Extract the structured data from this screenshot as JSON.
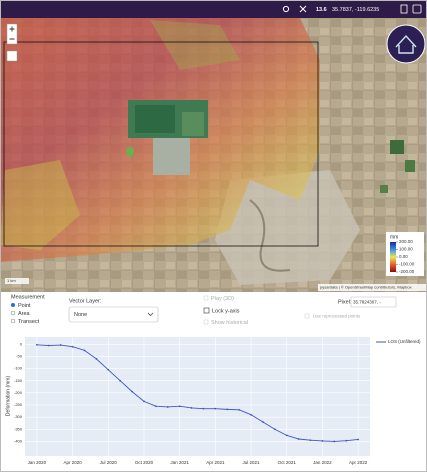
{
  "top_bar": {
    "zoom": "13.6",
    "coords": "35.7837, -119.6235"
  },
  "map": {
    "scale": "1 km",
    "attribution": "pysardata | © OpenStreetMap contributors, Mapbox",
    "colorbar": {
      "unit": "mm",
      "ticks": [
        {
          "value": 200,
          "label": "200.00"
        },
        {
          "value": 100,
          "label": "100.00"
        },
        {
          "value": 0,
          "label": "0.00"
        },
        {
          "value": -100,
          "label": "-100.00"
        },
        {
          "value": -200,
          "label": "-200.00"
        }
      ]
    }
  },
  "controls": {
    "measurement": "Measurement",
    "options": [
      "Point",
      "Area",
      "Transect"
    ],
    "vector_layer": "Vector Layer:",
    "vector_value": "None",
    "play": "Play (3D)",
    "lock": "Lock y-axis",
    "historical": "Show historical",
    "pixel": "Pixel:",
    "pixel_value": "35.7824307, -",
    "reprocessed": "Use reprocessed points"
  },
  "chart_data": {
    "type": "line",
    "y_label": "Deformation (mm)",
    "x": [
      "2020-01",
      "2020-02",
      "2020-03",
      "2020-04",
      "2020-05",
      "2020-06",
      "2020-07",
      "2020-08",
      "2020-09",
      "2020-10",
      "2020-11",
      "2020-12",
      "2021-01",
      "2021-02",
      "2021-03",
      "2021-04",
      "2021-05",
      "2021-06",
      "2021-07",
      "2021-08",
      "2021-09",
      "2021-10",
      "2021-11",
      "2021-12",
      "2022-01",
      "2022-02",
      "2022-03",
      "2022-04"
    ],
    "series": [
      {
        "name": "LOS (Unfiltered)",
        "color": "#4154c9",
        "values": [
          -2,
          -5,
          -3,
          -10,
          -25,
          -60,
          -105,
          -150,
          -195,
          -235,
          -255,
          -258,
          -255,
          -262,
          -265,
          -265,
          -268,
          -270,
          -290,
          -320,
          -350,
          -375,
          -390,
          -395,
          -398,
          -400,
          -397,
          -392
        ]
      }
    ],
    "xlim": [
      "2019-12",
      "2022-05"
    ],
    "xticks": [
      {
        "value": "2020-01",
        "label": "Jan 2020"
      },
      {
        "value": "2020-04",
        "label": "Apr 2020"
      },
      {
        "value": "2020-07",
        "label": "Jul 2020"
      },
      {
        "value": "2020-10",
        "label": "Oct 2020"
      },
      {
        "value": "2021-01",
        "label": "Jan 2021"
      },
      {
        "value": "2021-04",
        "label": "Apr 2021"
      },
      {
        "value": "2021-07",
        "label": "Jul 2021"
      },
      {
        "value": "2021-10",
        "label": "Oct 2021"
      },
      {
        "value": "2022-01",
        "label": "Jan 2022"
      },
      {
        "value": "2022-04",
        "label": "Apr 2022"
      }
    ],
    "ylim": [
      -460,
      30
    ],
    "yticks": [
      0,
      -50,
      -100,
      -150,
      -200,
      -250,
      -300,
      -350,
      -400
    ],
    "grid": true
  }
}
